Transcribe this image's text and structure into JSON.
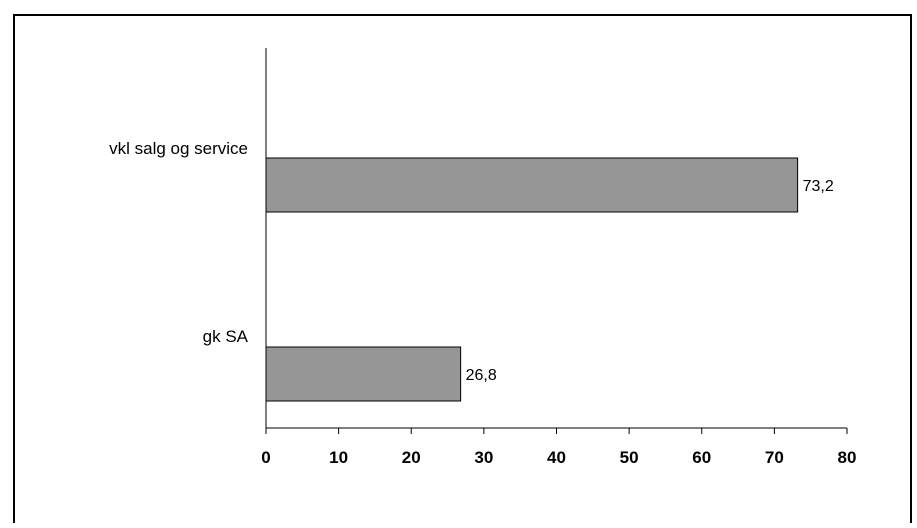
{
  "chart_data": {
    "type": "bar",
    "orientation": "horizontal",
    "categories": [
      "vkl salg og service",
      "gk SA"
    ],
    "values": [
      73.2,
      26.8
    ],
    "data_labels": [
      "73,2",
      "26,8"
    ],
    "xlim": [
      0,
      80
    ],
    "x_ticks": [
      0,
      10,
      20,
      30,
      40,
      50,
      60,
      70,
      80
    ],
    "x_tick_labels": [
      "0",
      "10",
      "20",
      "30",
      "40",
      "50",
      "60",
      "70",
      "80"
    ],
    "grid": false,
    "legend": "none",
    "colors": {
      "bar_fill": "#969696",
      "bar_stroke": "#000000",
      "axis": "#000000",
      "frame": "#000000",
      "background": "#ffffff"
    }
  }
}
